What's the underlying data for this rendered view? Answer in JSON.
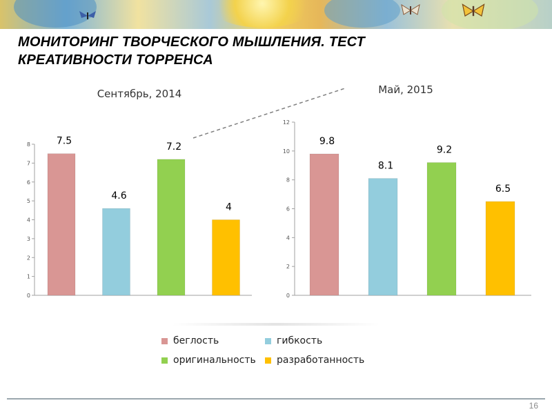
{
  "slide": {
    "title_line1": "МОНИТОРИНГ ТВОРЧЕСКОГО МЫШЛЕНИЯ. ТЕСТ",
    "title_line2": "КРЕАТИВНОСТИ ТОРРЕНСА",
    "page_number": "16"
  },
  "colors": {
    "беглость": "#d99694",
    "гибкость": "#93cddd",
    "оригинальность": "#92d050",
    "разработанность": "#ffc000"
  },
  "legend": [
    {
      "label": "беглость",
      "color": "#d99694"
    },
    {
      "label": "гибкость",
      "color": "#93cddd"
    },
    {
      "label": "оригинальность",
      "color": "#92d050"
    },
    {
      "label": "разработанность",
      "color": "#ffc000"
    }
  ],
  "chart_data": [
    {
      "type": "bar",
      "title": "Сентябрь, 2014",
      "categories": [
        "беглость",
        "гибкость",
        "оригинальность",
        "разработанность"
      ],
      "values": [
        7.5,
        4.6,
        7.2,
        4
      ],
      "value_labels": [
        "7.5",
        "4.6",
        "7.2",
        "4"
      ],
      "ylim": [
        0,
        8
      ],
      "yticks": [
        "0",
        "1",
        "2",
        "3",
        "4",
        "5",
        "6",
        "7",
        "8"
      ],
      "xlabel": "",
      "ylabel": "",
      "grid": false,
      "legend": "bottom"
    },
    {
      "type": "bar",
      "title": "Май, 2015",
      "categories": [
        "беглость",
        "гибкость",
        "оригинальность",
        "разработанность"
      ],
      "values": [
        9.8,
        8.1,
        9.2,
        6.5
      ],
      "value_labels": [
        "9.8",
        "8.1",
        "9.2",
        "6.5"
      ],
      "ylim": [
        0,
        12
      ],
      "yticks": [
        "0",
        "2",
        "4",
        "6",
        "8",
        "10",
        "12"
      ],
      "xlabel": "",
      "ylabel": "",
      "grid": false,
      "legend": "bottom"
    }
  ]
}
